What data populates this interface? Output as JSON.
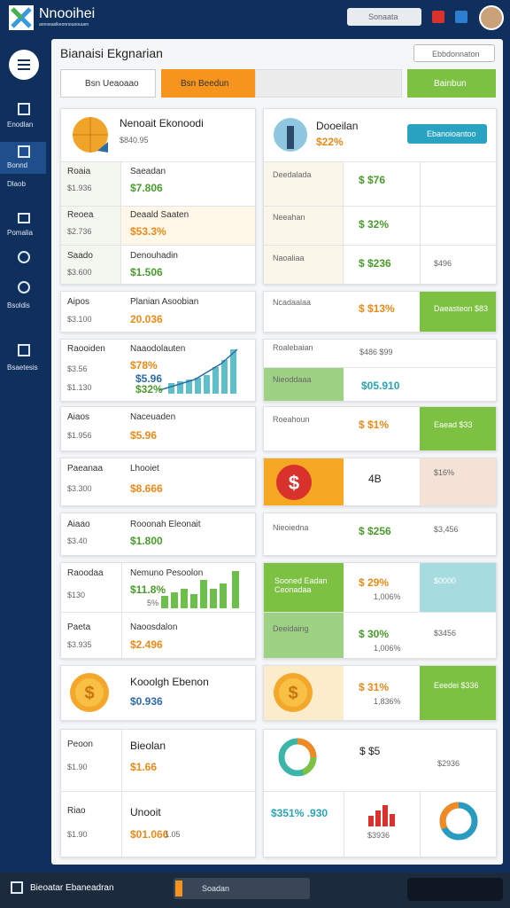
{
  "header": {
    "brand": "Nnooihei",
    "tagline": "annoeaslkeonnouoouuen",
    "search": "Sonaata"
  },
  "sidebar": [
    "Enodlan",
    "Bonnd",
    "Dlaob",
    "Pomalia",
    "Bsoldis",
    "Bsaetesis"
  ],
  "panel": {
    "title": "Bianaisi Ekgnarian",
    "action": "Ebbdonnaton",
    "tabs": [
      "Bsn Ueaoaao",
      "Bsn Beedun",
      "Bainbun"
    ]
  },
  "left": [
    [
      "Nenoait Ekonoodi",
      "$840.95"
    ],
    [
      "Roaia",
      "$1.936",
      "Saeadan",
      "$7.806"
    ],
    [
      "Reoea",
      "$2.736",
      "Deaald Saaten",
      "$53.3%"
    ],
    [
      "Saado",
      "$3.600",
      "Denouhadin",
      "$1.506"
    ],
    [
      "Aipos",
      "$3.100",
      "Planian Asoobian",
      "20.036"
    ],
    [
      "Raooiden",
      "$3.56",
      "$1.130",
      "Naaodolauten",
      "$78%",
      "$5.96",
      "$32%"
    ],
    [
      "Aiaos",
      "$1.956",
      "Naceuaden",
      "$5.96"
    ],
    [
      "Paeanaa",
      "$3.300",
      "Lhooiet",
      "$8.666"
    ],
    [
      "Aiaao",
      "$3.40",
      "Rooonah Eleonait",
      "$1.800"
    ],
    [
      "Raoodaa",
      "$130",
      "Nemuno Pesoolon",
      "$11.8%",
      "5%"
    ],
    [
      "Paeta",
      "$3.935",
      "Naoosdalon",
      "$2.496"
    ],
    [
      "Kooolgh Ebenon",
      "$0.936"
    ],
    [
      "Peoon",
      "$1.90",
      "Bieolan",
      "$1.66"
    ],
    [
      "Riao",
      "$1.90",
      "Unooit",
      "$01.066",
      "1.05"
    ]
  ],
  "right": [
    [
      "Dooeilan",
      "$22%",
      "Ebanoioantoo"
    ],
    [
      "Deedalada",
      "$ $76"
    ],
    [
      "Neeahan",
      "$ 32%"
    ],
    [
      "Naoaliaa",
      "$ $236",
      "$496"
    ],
    [
      "Ncadaalaa",
      "$ $13%",
      "Daeasteon $83"
    ],
    [
      "Roalebaian",
      "$486 $99",
      "Nieoddaaa",
      "$05.910"
    ],
    [
      "Roeahoun",
      "$ $1%",
      "Eaead $33"
    ],
    [
      "4B",
      "$16%"
    ],
    [
      "Nieoiedna",
      "$ $256",
      "$3,456"
    ],
    [
      "Sooned Eadan Ceonadaa",
      "$ 29%",
      "1,006%",
      "$0000"
    ],
    [
      "Deeidaing",
      "$ 30%",
      "1,006%",
      "$3456"
    ],
    [
      "$ 31%",
      "1,836%",
      "Eeedei $336"
    ],
    [
      "$ $5",
      "$2936"
    ],
    [
      "$351% .930",
      "$3936"
    ]
  ],
  "footer": {
    "title": "Bieoatar Ebaneadran",
    "search": "Soadan"
  }
}
